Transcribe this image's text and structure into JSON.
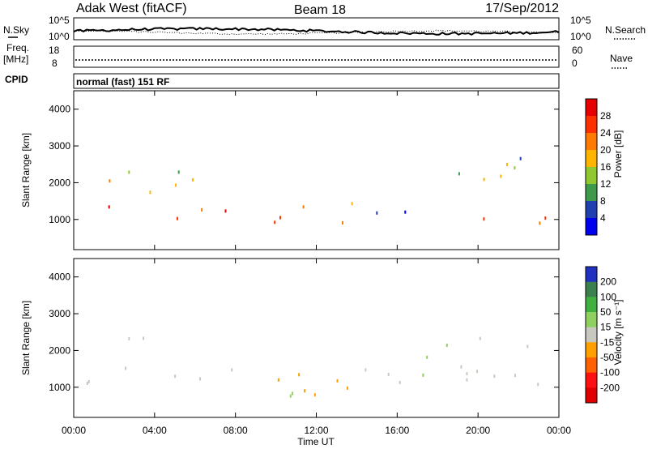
{
  "header": {
    "station": "Adak West (fitACF)",
    "beam": "Beam 18",
    "date": "17/Sep/2012"
  },
  "strip": {
    "nsky_label": "N.Sky",
    "nsky_ticks": [
      "10^5",
      "10^0"
    ],
    "nsearch_label": "N.Search",
    "nsearch_ticks": [
      "10^5",
      "10^0"
    ],
    "freq_label": "Freq.",
    "freq_unit": "[MHz]",
    "freq_ticks": [
      "18",
      "8"
    ],
    "nave_label": "Nave",
    "nave_ticks": [
      "60",
      "0"
    ],
    "cpid_label": "CPID",
    "cpid_value": "normal (fast) 151 RF"
  },
  "chart_data": [
    {
      "type": "heatmap",
      "name": "power",
      "ylabel": "Slant Range [km]",
      "yticks": [
        "4000",
        "3000",
        "2000",
        "1000"
      ],
      "ylim": [
        180,
        4500
      ],
      "colorbar_label": "Power [dB]",
      "colorbar_ticks": [
        "28",
        "24",
        "20",
        "16",
        "12",
        "8",
        "4"
      ],
      "colorbar_colors": [
        "#e60000",
        "#ff3000",
        "#ff7a00",
        "#ffb400",
        "#90c830",
        "#3c9a4a",
        "#2040b0",
        "#0000f0"
      ],
      "echo_bands": [
        {
          "t0": 0.5,
          "t1": 7.5,
          "r0": 900,
          "r1": 1450,
          "level": 26
        },
        {
          "t0": 8.5,
          "t1": 14.5,
          "r0": 800,
          "r1": 1600,
          "level": 22
        },
        {
          "t0": 18.5,
          "t1": 24,
          "r0": 850,
          "r1": 1400,
          "level": 26
        },
        {
          "t0": 0.5,
          "t1": 6,
          "r0": 1700,
          "r1": 2600,
          "level": 16
        },
        {
          "t0": 14,
          "t1": 16.5,
          "r0": 900,
          "r1": 1700,
          "level": 8
        },
        {
          "t0": 19,
          "t1": 24,
          "r0": 2000,
          "r1": 3000,
          "level": 14
        }
      ]
    },
    {
      "type": "heatmap",
      "name": "velocity",
      "ylabel": "Slant Range [km]",
      "yticks": [
        "4000",
        "3000",
        "2000",
        "1000"
      ],
      "ylim": [
        180,
        4500
      ],
      "xlabel": "Time UT",
      "xticks": [
        "00:00",
        "04:00",
        "08:00",
        "12:00",
        "16:00",
        "20:00",
        "00:00"
      ],
      "xlim": [
        0,
        24
      ],
      "colorbar_label": "Velocity [m s⁻¹]",
      "colorbar_ticks": [
        "200",
        "100",
        "50",
        "15",
        "-15",
        "-50",
        "-100",
        "-200"
      ],
      "colorbar_colors": [
        "#2030c0",
        "#3c8050",
        "#40b040",
        "#90d060",
        "#c8c8c0",
        "#ffa000",
        "#ff6000",
        "#ff1010",
        "#e00000"
      ],
      "echo_bands": [
        {
          "t0": 0.5,
          "t1": 24,
          "r0": 1000,
          "r1": 1600,
          "level": 0
        },
        {
          "t0": 0.5,
          "t1": 5,
          "r0": 2100,
          "r1": 2500,
          "level": 0
        },
        {
          "t0": 19,
          "t1": 24,
          "r0": 2100,
          "r1": 2500,
          "level": 0
        },
        {
          "t0": 9.5,
          "t1": 14.5,
          "r0": 700,
          "r1": 1700,
          "level": -40
        },
        {
          "t0": 10,
          "t1": 12,
          "r0": 800,
          "r1": 1600,
          "level": 40
        },
        {
          "t0": 17,
          "t1": 19,
          "r0": 1200,
          "r1": 2600,
          "level": 40
        }
      ]
    }
  ]
}
